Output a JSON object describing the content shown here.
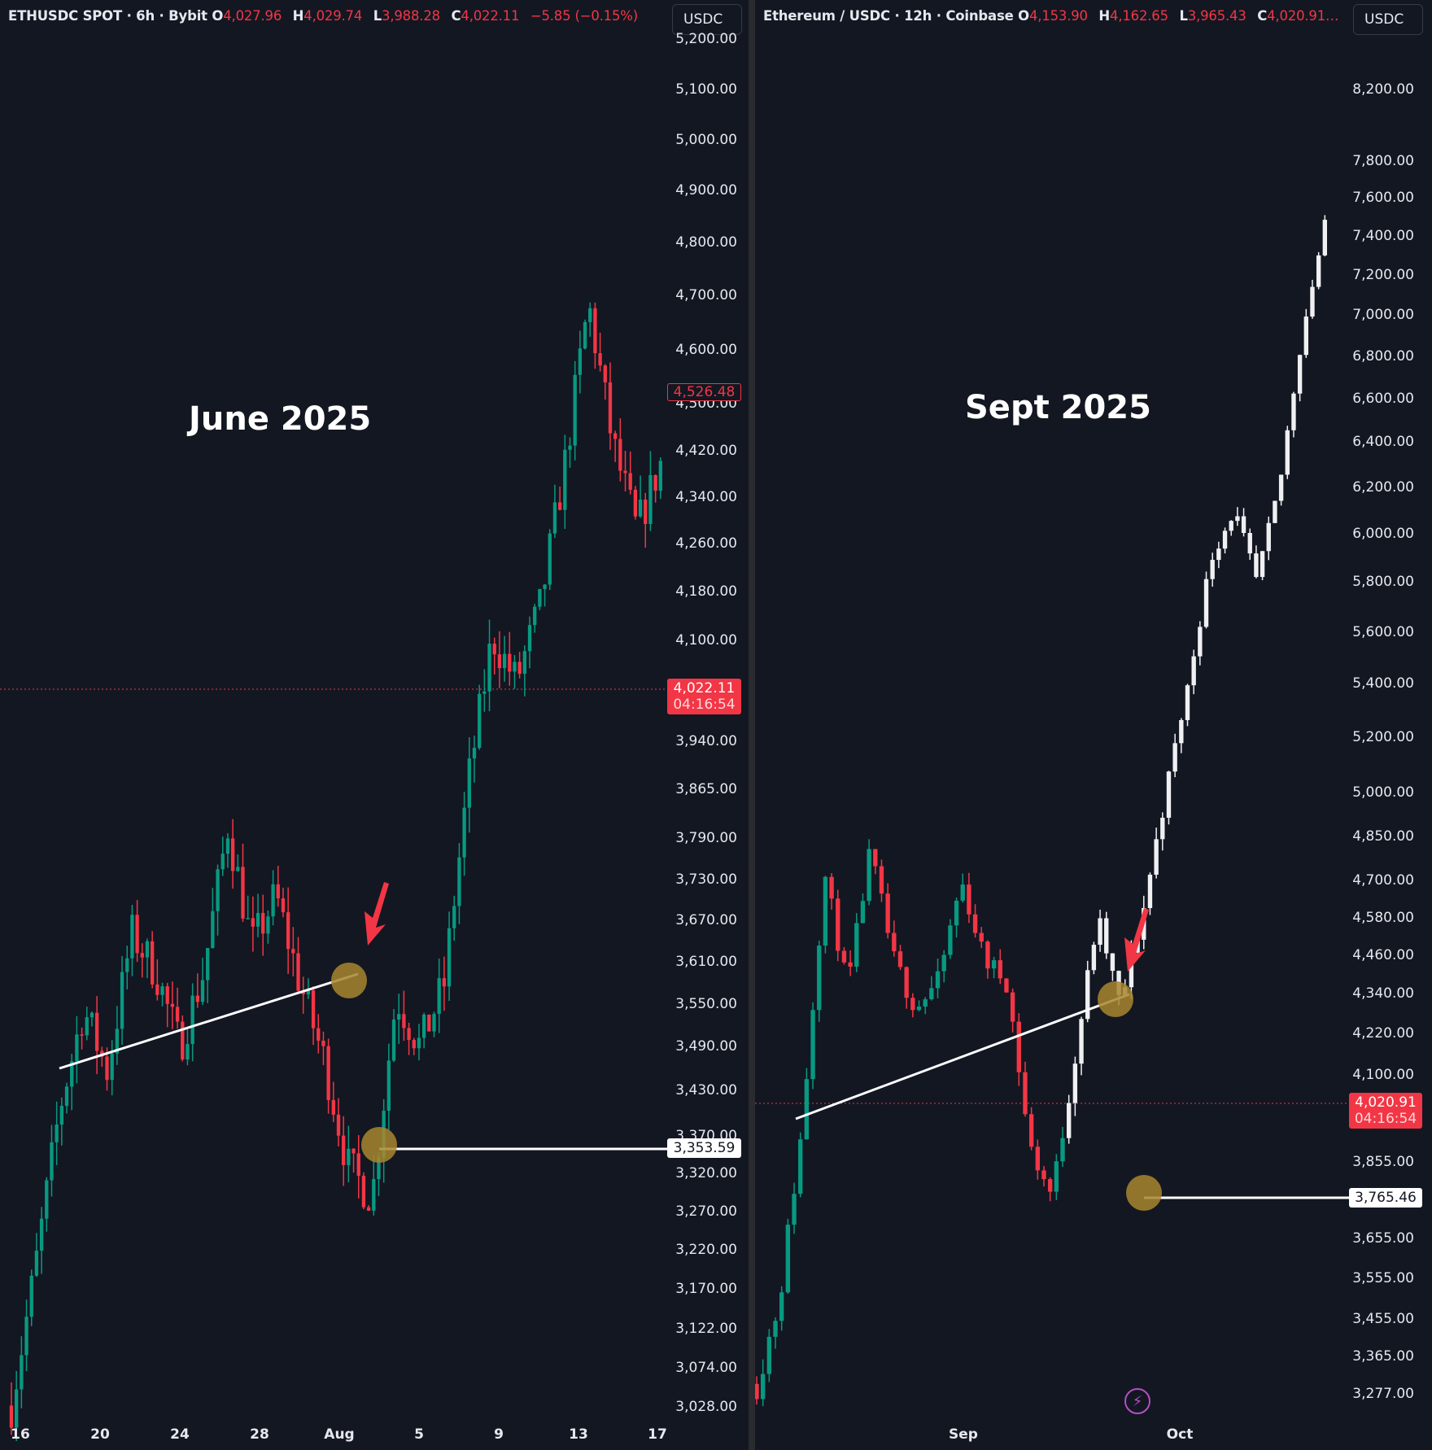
{
  "colors": {
    "background": "#131722",
    "bull": "#089981",
    "bear": "#f23645",
    "text": "#e6e8ee",
    "annotation_circle": "#a8862e",
    "trendline": "#ffffff",
    "alert_icon": "#b54fc4"
  },
  "left": {
    "header": {
      "symbol": "ETHUSDC SPOT · 6h · Bybit",
      "o_label": "O",
      "o": "4,027.96",
      "h_label": "H",
      "h": "4,029.74",
      "l_label": "L",
      "l": "3,988.28",
      "c_label": "C",
      "c": "4,022.11",
      "change": "−5.85 (−0.15%)"
    },
    "currency_button": "USDC",
    "overlay_title": "June 2025",
    "price_axis": [
      "5,200.00",
      "5,100.00",
      "5,000.00",
      "4,900.00",
      "4,800.00",
      "4,700.00",
      "4,600.00",
      "4,500.00",
      "4,420.00",
      "4,340.00",
      "4,260.00",
      "4,180.00",
      "4,100.00",
      "3,940.00",
      "3,865.00",
      "3,790.00",
      "3,730.00",
      "3,670.00",
      "3,610.00",
      "3,550.00",
      "3,490.00",
      "3,430.00",
      "3,370.00",
      "3,320.00",
      "3,270.00",
      "3,220.00",
      "3,170.00",
      "3,122.00",
      "3,074.00",
      "3,028.00"
    ],
    "time_axis": [
      "16",
      "20",
      "24",
      "28",
      "Aug",
      "5",
      "9",
      "13",
      "17"
    ],
    "tags": {
      "high_marker": "4,526.48",
      "current_price": "4,022.11",
      "countdown": "04:16:54",
      "support_level": "3,353.59"
    }
  },
  "right": {
    "header": {
      "symbol": "Ethereum / USDC · 12h · Coinbase",
      "o_label": "O",
      "o": "4,153.90",
      "h_label": "H",
      "h": "4,162.65",
      "l_label": "L",
      "l": "3,965.43",
      "c_label": "C",
      "c": "4,020.91…"
    },
    "currency_button": "USDC",
    "overlay_title": "Sept 2025",
    "price_axis": [
      "8,200.00",
      "7,800.00",
      "7,600.00",
      "7,400.00",
      "7,200.00",
      "7,000.00",
      "6,800.00",
      "6,600.00",
      "6,400.00",
      "6,200.00",
      "6,000.00",
      "5,800.00",
      "5,600.00",
      "5,400.00",
      "5,200.00",
      "5,000.00",
      "4,850.00",
      "4,700.00",
      "4,580.00",
      "4,460.00",
      "4,340.00",
      "4,220.00",
      "4,100.00",
      "3,855.00",
      "3,655.00",
      "3,555.00",
      "3,455.00",
      "3,365.00",
      "3,277.00"
    ],
    "time_axis": [
      "Sep",
      "Oct"
    ],
    "tags": {
      "current_price": "4,020.91",
      "countdown": "04:16:54",
      "support_level": "3,765.46"
    }
  },
  "chart_data": [
    {
      "type": "candlestick",
      "title": "June 2025",
      "subtitle": "ETHUSDC SPOT · 6h · Bybit",
      "x": [
        "16",
        "20",
        "24",
        "28",
        "Aug",
        "5",
        "9",
        "13",
        "17"
      ],
      "ylim": [
        3000,
        5230
      ],
      "y_ticks": [
        5200,
        5100,
        5000,
        4900,
        4800,
        4700,
        4600,
        4500,
        4420,
        4340,
        4260,
        4180,
        4100,
        3940,
        3865,
        3790,
        3730,
        3670,
        3610,
        3550,
        3490,
        3430,
        3370,
        3320,
        3270,
        3220,
        3170,
        3122,
        3074,
        3028
      ],
      "approx_path": [
        3030,
        3250,
        3500,
        3660,
        3560,
        3780,
        3720,
        3600,
        3720,
        3950,
        3760,
        3840,
        3700,
        3580,
        3410,
        3360,
        3680,
        3600,
        3700,
        4020,
        4250,
        4180,
        4300,
        4520,
        4780,
        4560,
        4420,
        4526
      ],
      "annotations": [
        "Rising trendline from ~3,460 to ~3,590 broken",
        "Red arrow at breakdown",
        "Support marker at 3,353.59",
        "Current price 4,022.11",
        "Marked price 4,526.48"
      ],
      "current_price": 4022.11,
      "support": 3353.59
    },
    {
      "type": "candlestick",
      "title": "Sept 2025",
      "subtitle": "Ethereum / USDC · 12h · Coinbase",
      "x": [
        "Sep",
        "Oct"
      ],
      "ylim": [
        3230,
        8400
      ],
      "y_ticks": [
        8200,
        7800,
        7600,
        7400,
        7200,
        7000,
        6800,
        6600,
        6400,
        6200,
        6000,
        5800,
        5600,
        5400,
        5200,
        5000,
        4850,
        4700,
        4580,
        4460,
        4340,
        4220,
        4100,
        3855,
        3655,
        3555,
        3455,
        3365,
        3277
      ],
      "approx_path": [
        3300,
        3500,
        3950,
        4720,
        4350,
        4800,
        4450,
        4300,
        4380,
        4700,
        4450,
        4380,
        3900,
        3765,
        4150,
        4580,
        4300,
        4600,
        5000,
        5400,
        5900,
        6100,
        5800,
        6200,
        6900,
        7450
      ],
      "annotations": [
        "Rising trendline broken",
        "Red arrow at breakdown",
        "Support marker at 3,765.46",
        "Projected candles in white",
        "Current price 4,020.91"
      ],
      "current_price": 4020.91,
      "support": 3765.46
    }
  ]
}
